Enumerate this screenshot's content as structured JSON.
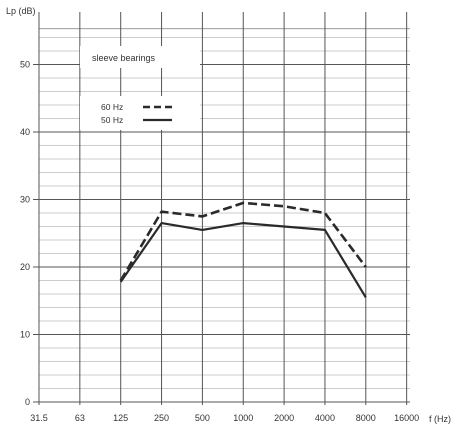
{
  "chart_data": {
    "type": "line",
    "title": "",
    "ylabel": "Lp (dB)",
    "xlabel": "f (Hz)",
    "annotation": "sleeve bearings",
    "x_categories": [
      "31.5",
      "63",
      "125",
      "250",
      "500",
      "1000",
      "2000",
      "4000",
      "8000",
      "16000"
    ],
    "yticks": [
      0,
      10,
      20,
      30,
      40,
      50
    ],
    "ylim": [
      0,
      55
    ],
    "grid": true,
    "legend_position": "upper-left inside plot",
    "series": [
      {
        "name": "60 Hz",
        "style": "dashed",
        "color": "#2a2a2a",
        "x": [
          "125",
          "250",
          "500",
          "1000",
          "2000",
          "4000",
          "8000"
        ],
        "values": [
          18.0,
          28.2,
          27.5,
          29.5,
          29.0,
          28.0,
          20.0
        ]
      },
      {
        "name": "50 Hz",
        "style": "solid",
        "color": "#2a2a2a",
        "x": [
          "125",
          "250",
          "500",
          "1000",
          "2000",
          "4000",
          "8000"
        ],
        "values": [
          17.8,
          26.5,
          25.5,
          26.5,
          26.0,
          25.5,
          15.5
        ]
      }
    ]
  }
}
